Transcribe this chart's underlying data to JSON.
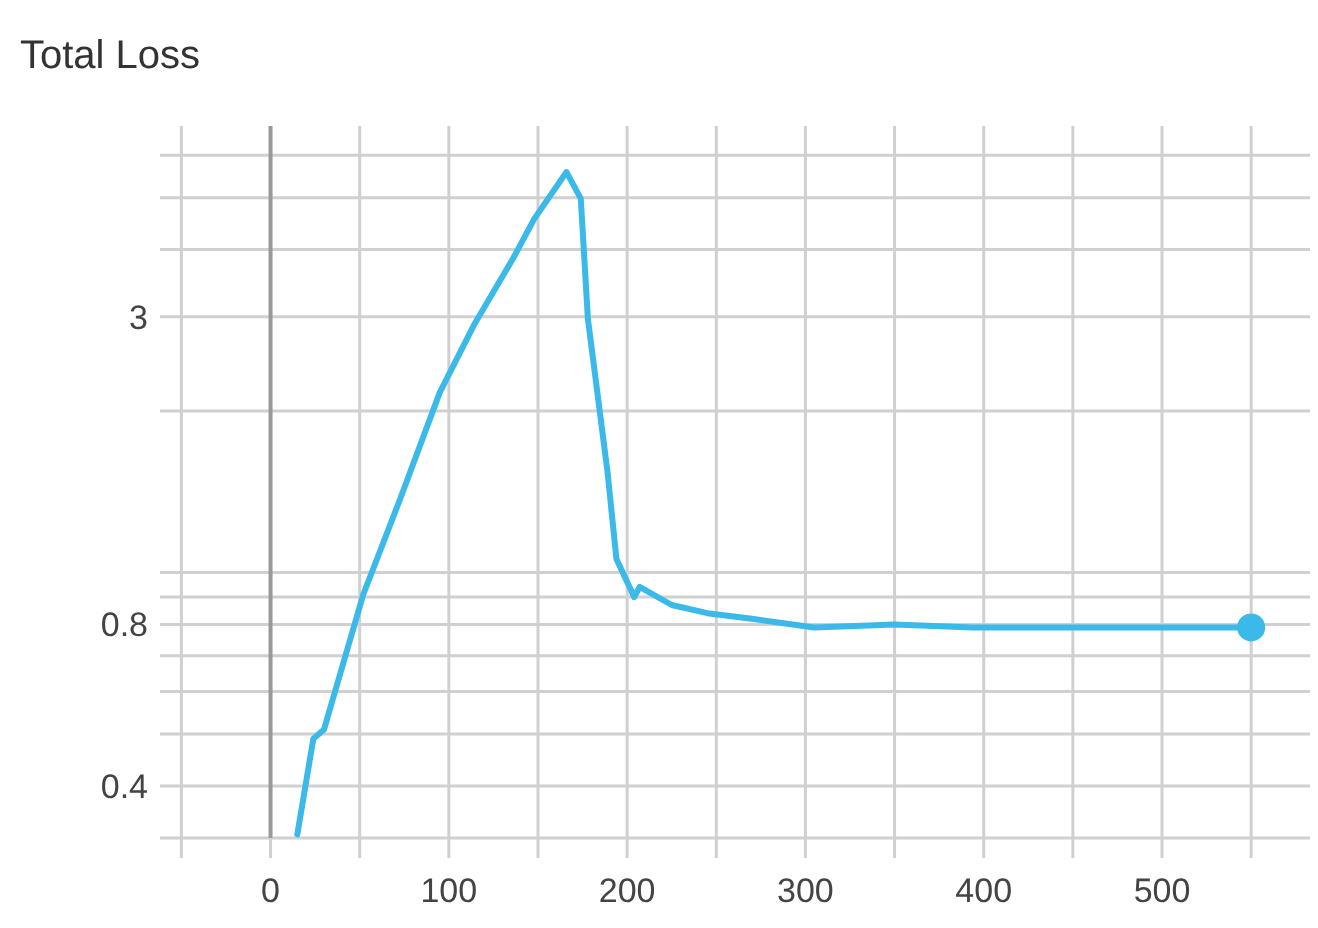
{
  "chart_data": {
    "type": "line",
    "title": "Total Loss",
    "log": "y",
    "grid": true,
    "line_style": "solid",
    "xlim": [
      -62,
      583
    ],
    "ylim": [
      0.32,
      6.8
    ],
    "xticks": [
      {
        "value": -50,
        "label": null
      },
      0,
      {
        "value": 50,
        "label": null
      },
      100,
      {
        "value": 150,
        "label": null
      },
      200,
      {
        "value": 250,
        "label": null
      },
      300,
      {
        "value": 350,
        "label": null
      },
      400,
      {
        "value": 450,
        "label": null
      },
      500,
      {
        "value": 550,
        "label": null
      }
    ],
    "yticks": [
      {
        "value": 0.4,
        "label": "0.4"
      },
      {
        "value": 0.5,
        "label": null
      },
      {
        "value": 0.6,
        "label": null
      },
      {
        "value": 0.7,
        "label": null
      },
      {
        "value": 0.8,
        "label": "0.8"
      },
      {
        "value": 0.9,
        "label": null
      },
      {
        "value": 1,
        "label": null
      },
      {
        "value": 2,
        "label": null
      },
      3,
      {
        "value": 4,
        "label": null
      },
      {
        "value": 5,
        "label": null
      },
      {
        "value": 6,
        "label": null
      }
    ],
    "ref_lines": [
      {
        "axis": "x",
        "value": 0,
        "color": "#999999"
      }
    ],
    "series": [
      {
        "color": "#3bb9e8",
        "marker": "none",
        "x": [
          15,
          24,
          30,
          52,
          73,
          95,
          114,
          136,
          148,
          166,
          174,
          178,
          189,
          194,
          204,
          207,
          225,
          245,
          270,
          305,
          350,
          394,
          450,
          500,
          550
        ],
        "values": [
          0.325,
          0.49,
          0.51,
          0.91,
          1.38,
          2.17,
          2.89,
          3.85,
          4.57,
          5.58,
          4.98,
          2.97,
          1.54,
          1.06,
          0.9,
          0.94,
          0.87,
          0.84,
          0.82,
          0.79,
          0.8,
          0.79,
          0.79,
          0.79,
          0.79
        ]
      },
      {
        "type": "scatter",
        "color": "#3bb9e8",
        "marker": "circle",
        "x": [
          550
        ],
        "values": [
          0.79
        ]
      }
    ]
  }
}
